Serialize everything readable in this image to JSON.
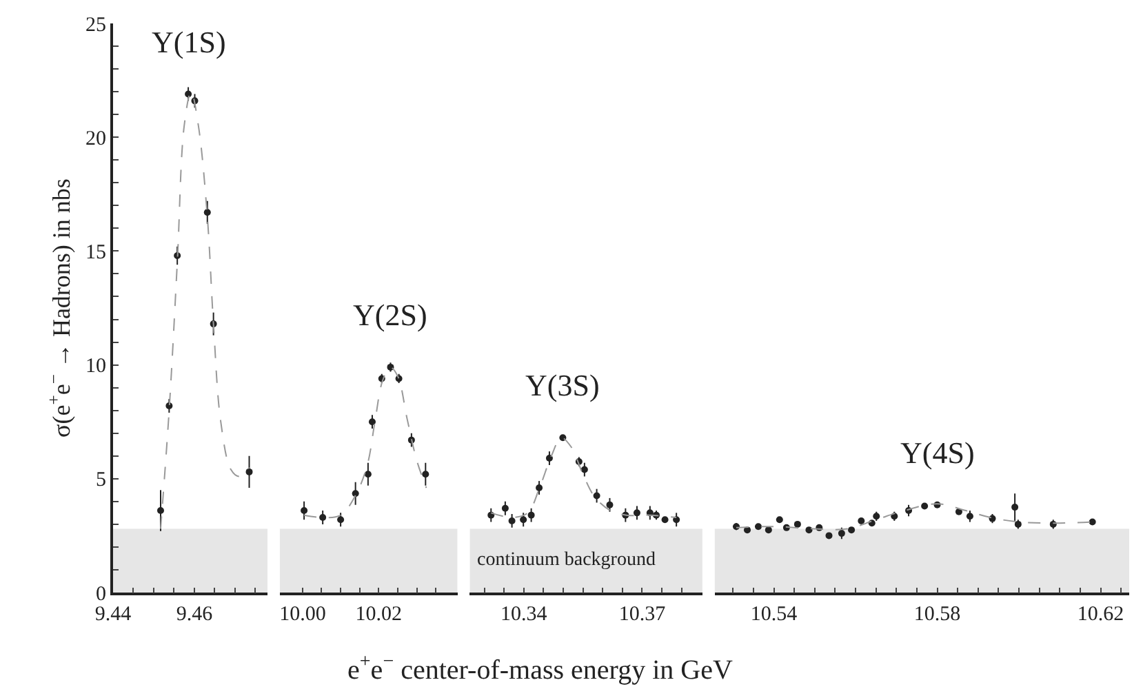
{
  "chart_data": [
    {
      "type": "scatter",
      "xlabel": "e$^{+}$e$^{−}$ center-of-mass energy in GeV",
      "ylabel": "σ(e$^{+}$e$^{−}$ → Hadrons) in nbs",
      "marker": "circle",
      "xlim": [
        9.44,
        9.478
      ],
      "xticks": [
        9.44,
        {
          "value": 9.445,
          "label": null
        },
        {
          "value": 9.45,
          "label": null
        },
        {
          "value": 9.455,
          "label": null
        },
        9.46,
        {
          "value": 9.465,
          "label": null
        },
        {
          "value": 9.47,
          "label": null
        },
        {
          "value": 9.475,
          "label": null
        }
      ],
      "ylim": [
        0,
        25
      ],
      "yticks": [
        0,
        {
          "value": 1,
          "label": null
        },
        {
          "value": 2,
          "label": null
        },
        {
          "value": 3,
          "label": null
        },
        {
          "value": 4,
          "label": null
        },
        5,
        {
          "value": 6,
          "label": null
        },
        {
          "value": 7,
          "label": null
        },
        {
          "value": 8,
          "label": null
        },
        {
          "value": 9,
          "label": null
        },
        10,
        {
          "value": 11,
          "label": null
        },
        {
          "value": 12,
          "label": null
        },
        {
          "value": 13,
          "label": null
        },
        {
          "value": 14,
          "label": null
        },
        15,
        {
          "value": 16,
          "label": null
        },
        {
          "value": 17,
          "label": null
        },
        {
          "value": 18,
          "label": null
        },
        {
          "value": 19,
          "label": null
        },
        20,
        {
          "value": 21,
          "label": null
        },
        {
          "value": 22,
          "label": null
        },
        {
          "value": 23,
          "label": null
        },
        {
          "value": 24,
          "label": null
        },
        25
      ],
      "bands": [
        {
          "axis": "y",
          "from": 0,
          "to": 2.8,
          "color": "#e6e6e6"
        }
      ],
      "annotations": [
        "Υ(1S)"
      ],
      "series": [
        {
          "color": "#222222",
          "x": [
            9.4517,
            9.4538,
            9.4558,
            9.4585,
            9.4601,
            9.4632,
            9.4647,
            9.4735
          ],
          "values": [
            3.6,
            8.2,
            14.8,
            21.9,
            21.6,
            16.7,
            11.8,
            5.3
          ],
          "errors": [
            0.9,
            0.3,
            0.4,
            0.3,
            0.3,
            0.5,
            0.5,
            0.7
          ]
        },
        {
          "type": "line",
          "color": "#999999",
          "line_style": "dashed",
          "marker": "none",
          "x": [
            9.4517,
            9.4538,
            9.4558,
            9.4575,
            9.4592,
            9.461,
            9.4632,
            9.4647,
            9.4665,
            9.469,
            9.471,
            9.4735
          ],
          "values": [
            2.8,
            8.0,
            14.5,
            20.5,
            22.0,
            20.5,
            16.5,
            11.8,
            7.5,
            5.4,
            5.1,
            5.5
          ]
        }
      ]
    },
    {
      "type": "scatter",
      "marker": "circle",
      "tick_labels": "x",
      "xlim": [
        9.994,
        10.0407
      ],
      "xticks": [
        {
          "value": 10.0,
          "label": "10.00"
        },
        {
          "value": 10.005,
          "label": null
        },
        {
          "value": 10.01,
          "label": null
        },
        {
          "value": 10.015,
          "label": null
        },
        10.02,
        {
          "value": 10.025,
          "label": null
        },
        {
          "value": 10.03,
          "label": null
        },
        {
          "value": 10.035,
          "label": null
        }
      ],
      "ylim": [
        0,
        25
      ],
      "bands": [
        {
          "axis": "y",
          "from": 0,
          "to": 2.8,
          "color": "#e6e6e6"
        }
      ],
      "annotations": [
        "Υ(2S)"
      ],
      "series": [
        {
          "color": "#222222",
          "x": [
            10.0004,
            10.0053,
            10.01,
            10.0139,
            10.0172,
            10.0183,
            10.0208,
            10.0231,
            10.0253,
            10.0286,
            10.0323
          ],
          "values": [
            3.6,
            3.3,
            3.2,
            4.35,
            5.2,
            7.5,
            9.4,
            9.9,
            9.4,
            6.7,
            5.2
          ],
          "errors": [
            0.4,
            0.3,
            0.3,
            0.5,
            0.5,
            0.3,
            0.2,
            0.2,
            0.2,
            0.3,
            0.5
          ]
        },
        {
          "type": "line",
          "color": "#999999",
          "line_style": "dashed",
          "marker": "none",
          "x": [
            10.0004,
            10.005,
            10.01,
            10.014,
            10.017,
            10.019,
            10.021,
            10.023,
            10.025,
            10.0275,
            10.03,
            10.0325
          ],
          "values": [
            3.4,
            3.3,
            3.4,
            4.3,
            5.6,
            7.5,
            9.3,
            9.9,
            9.5,
            7.6,
            5.8,
            4.6
          ]
        }
      ]
    },
    {
      "type": "scatter",
      "marker": "circle",
      "tick_labels": "x",
      "xlim": [
        10.3263,
        10.3853
      ],
      "xticks": [
        {
          "value": 10.33,
          "label": null
        },
        {
          "value": 10.335,
          "label": null
        },
        10.34,
        {
          "value": 10.345,
          "label": null
        },
        {
          "value": 10.35,
          "label": null
        },
        {
          "value": 10.355,
          "label": null
        },
        {
          "value": 10.36,
          "label": null
        },
        {
          "value": 10.365,
          "label": null
        },
        10.37,
        {
          "value": 10.375,
          "label": null
        },
        {
          "value": 10.38,
          "label": null
        }
      ],
      "ylim": [
        0,
        25
      ],
      "bands": [
        {
          "axis": "y",
          "from": 0,
          "to": 2.8,
          "color": "#e6e6e6",
          "label": "continuum background"
        }
      ],
      "annotations": [
        "Υ(3S)"
      ],
      "series": [
        {
          "color": "#222222",
          "x": [
            10.3317,
            10.3353,
            10.337,
            10.3399,
            10.3419,
            10.3439,
            10.3465,
            10.3499,
            10.354,
            10.3554,
            10.3585,
            10.3618,
            10.3658,
            10.3687,
            10.372,
            10.3736,
            10.3758,
            10.3787
          ],
          "values": [
            3.4,
            3.7,
            3.15,
            3.2,
            3.4,
            4.6,
            5.9,
            6.8,
            5.75,
            5.4,
            4.25,
            3.85,
            3.4,
            3.5,
            3.5,
            3.4,
            3.2,
            3.2
          ],
          "errors": [
            0.3,
            0.3,
            0.3,
            0.3,
            0.3,
            0.3,
            0.3,
            0.1,
            0.2,
            0.3,
            0.3,
            0.3,
            0.3,
            0.3,
            0.3,
            0.2,
            0.1,
            0.3
          ]
        },
        {
          "type": "line",
          "color": "#999999",
          "line_style": "dashed",
          "marker": "none",
          "x": [
            10.3317,
            10.337,
            10.341,
            10.344,
            10.347,
            10.3495,
            10.352,
            10.355,
            10.358,
            10.362,
            10.366,
            10.372,
            10.3787
          ],
          "values": [
            3.5,
            3.3,
            3.5,
            4.6,
            6.0,
            6.8,
            6.4,
            5.2,
            4.2,
            3.6,
            3.4,
            3.4,
            3.3
          ]
        }
      ]
    },
    {
      "type": "scatter",
      "marker": "circle",
      "tick_labels": "x",
      "xlim": [
        10.5255,
        10.627
      ],
      "xticks": [
        {
          "value": 10.53,
          "label": null
        },
        {
          "value": 10.535,
          "label": null
        },
        10.54,
        {
          "value": 10.545,
          "label": null
        },
        {
          "value": 10.55,
          "label": null
        },
        {
          "value": 10.555,
          "label": null
        },
        {
          "value": 10.56,
          "label": null
        },
        {
          "value": 10.565,
          "label": null
        },
        {
          "value": 10.57,
          "label": null
        },
        {
          "value": 10.575,
          "label": null
        },
        10.58,
        {
          "value": 10.585,
          "label": null
        },
        {
          "value": 10.59,
          "label": null
        },
        {
          "value": 10.595,
          "label": null
        },
        {
          "value": 10.6,
          "label": null
        },
        {
          "value": 10.605,
          "label": null
        },
        {
          "value": 10.61,
          "label": null
        },
        {
          "value": 10.615,
          "label": null
        },
        10.62,
        {
          "value": 10.625,
          "label": null
        }
      ],
      "ylim": [
        0,
        25
      ],
      "bands": [
        {
          "axis": "y",
          "from": 0,
          "to": 2.8,
          "color": "#e6e6e6"
        }
      ],
      "annotations": [
        "Υ(4S)"
      ],
      "series": [
        {
          "color": "#222222",
          "x": [
            10.5308,
            10.5335,
            10.5362,
            10.5387,
            10.5414,
            10.5431,
            10.5458,
            10.5486,
            10.5511,
            10.5535,
            10.5566,
            10.559,
            10.5614,
            10.564,
            10.5651,
            10.5695,
            10.573,
            10.5769,
            10.58,
            10.5853,
            10.588,
            10.5935,
            10.599,
            10.5998,
            10.6084,
            10.618
          ],
          "values": [
            2.9,
            2.75,
            2.9,
            2.75,
            3.2,
            2.85,
            3.0,
            2.75,
            2.85,
            2.5,
            2.6,
            2.75,
            3.15,
            3.05,
            3.35,
            3.35,
            3.6,
            3.8,
            3.85,
            3.55,
            3.35,
            3.25,
            3.75,
            3.0,
            3.0,
            3.1
          ],
          "errors": [
            0.15,
            0.1,
            0.1,
            0.1,
            0.1,
            0.1,
            0.1,
            0.1,
            0.1,
            0.1,
            0.25,
            0.1,
            0.1,
            0.1,
            0.2,
            0.2,
            0.25,
            0.1,
            0.1,
            0.1,
            0.25,
            0.2,
            0.6,
            0.2,
            0.2,
            0.1
          ]
        },
        {
          "type": "line",
          "color": "#999999",
          "line_style": "dashed",
          "marker": "none",
          "x": [
            10.5308,
            10.54,
            10.55,
            10.558,
            10.565,
            10.572,
            10.58,
            10.587,
            10.593,
            10.6,
            10.61,
            10.618
          ],
          "values": [
            2.85,
            2.9,
            2.8,
            2.8,
            3.2,
            3.6,
            3.9,
            3.6,
            3.3,
            3.1,
            3.05,
            3.1
          ]
        }
      ]
    }
  ]
}
